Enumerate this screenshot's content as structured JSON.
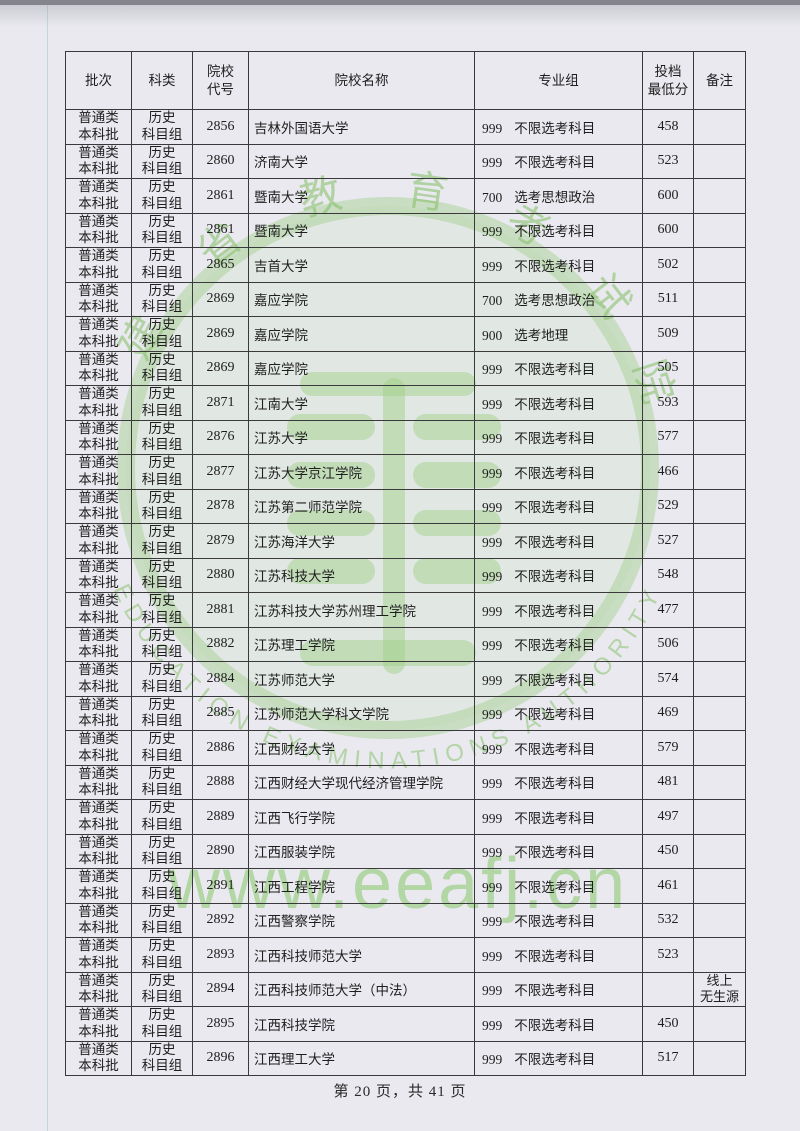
{
  "table": {
    "columns": [
      {
        "key": "batch",
        "label": "批次"
      },
      {
        "key": "category",
        "label": "科类"
      },
      {
        "key": "code",
        "label": "院校\n代号"
      },
      {
        "key": "name",
        "label": "院校名称"
      },
      {
        "key": "group",
        "label": "专业组"
      },
      {
        "key": "score",
        "label": "投档\n最低分"
      },
      {
        "key": "remark",
        "label": "备注"
      }
    ],
    "rows": [
      {
        "batch": "普通类\n本科批",
        "category": "历史\n科目组",
        "code": "2856",
        "name": "吉林外国语大学",
        "group_code": "999",
        "group_name": "不限选考科目",
        "score": "458",
        "remark": ""
      },
      {
        "batch": "普通类\n本科批",
        "category": "历史\n科目组",
        "code": "2860",
        "name": "济南大学",
        "group_code": "999",
        "group_name": "不限选考科目",
        "score": "523",
        "remark": ""
      },
      {
        "batch": "普通类\n本科批",
        "category": "历史\n科目组",
        "code": "2861",
        "name": "暨南大学",
        "group_code": "700",
        "group_name": "选考思想政治",
        "score": "600",
        "remark": ""
      },
      {
        "batch": "普通类\n本科批",
        "category": "历史\n科目组",
        "code": "2861",
        "name": "暨南大学",
        "group_code": "999",
        "group_name": "不限选考科目",
        "score": "600",
        "remark": ""
      },
      {
        "batch": "普通类\n本科批",
        "category": "历史\n科目组",
        "code": "2865",
        "name": "吉首大学",
        "group_code": "999",
        "group_name": "不限选考科目",
        "score": "502",
        "remark": ""
      },
      {
        "batch": "普通类\n本科批",
        "category": "历史\n科目组",
        "code": "2869",
        "name": "嘉应学院",
        "group_code": "700",
        "group_name": "选考思想政治",
        "score": "511",
        "remark": ""
      },
      {
        "batch": "普通类\n本科批",
        "category": "历史\n科目组",
        "code": "2869",
        "name": "嘉应学院",
        "group_code": "900",
        "group_name": "选考地理",
        "score": "509",
        "remark": ""
      },
      {
        "batch": "普通类\n本科批",
        "category": "历史\n科目组",
        "code": "2869",
        "name": "嘉应学院",
        "group_code": "999",
        "group_name": "不限选考科目",
        "score": "505",
        "remark": ""
      },
      {
        "batch": "普通类\n本科批",
        "category": "历史\n科目组",
        "code": "2871",
        "name": "江南大学",
        "group_code": "999",
        "group_name": "不限选考科目",
        "score": "593",
        "remark": ""
      },
      {
        "batch": "普通类\n本科批",
        "category": "历史\n科目组",
        "code": "2876",
        "name": "江苏大学",
        "group_code": "999",
        "group_name": "不限选考科目",
        "score": "577",
        "remark": ""
      },
      {
        "batch": "普通类\n本科批",
        "category": "历史\n科目组",
        "code": "2877",
        "name": "江苏大学京江学院",
        "group_code": "999",
        "group_name": "不限选考科目",
        "score": "466",
        "remark": ""
      },
      {
        "batch": "普通类\n本科批",
        "category": "历史\n科目组",
        "code": "2878",
        "name": "江苏第二师范学院",
        "group_code": "999",
        "group_name": "不限选考科目",
        "score": "529",
        "remark": ""
      },
      {
        "batch": "普通类\n本科批",
        "category": "历史\n科目组",
        "code": "2879",
        "name": "江苏海洋大学",
        "group_code": "999",
        "group_name": "不限选考科目",
        "score": "527",
        "remark": ""
      },
      {
        "batch": "普通类\n本科批",
        "category": "历史\n科目组",
        "code": "2880",
        "name": "江苏科技大学",
        "group_code": "999",
        "group_name": "不限选考科目",
        "score": "548",
        "remark": ""
      },
      {
        "batch": "普通类\n本科批",
        "category": "历史\n科目组",
        "code": "2881",
        "name": "江苏科技大学苏州理工学院",
        "group_code": "999",
        "group_name": "不限选考科目",
        "score": "477",
        "remark": ""
      },
      {
        "batch": "普通类\n本科批",
        "category": "历史\n科目组",
        "code": "2882",
        "name": "江苏理工学院",
        "group_code": "999",
        "group_name": "不限选考科目",
        "score": "506",
        "remark": ""
      },
      {
        "batch": "普通类\n本科批",
        "category": "历史\n科目组",
        "code": "2884",
        "name": "江苏师范大学",
        "group_code": "999",
        "group_name": "不限选考科目",
        "score": "574",
        "remark": ""
      },
      {
        "batch": "普通类\n本科批",
        "category": "历史\n科目组",
        "code": "2885",
        "name": "江苏师范大学科文学院",
        "group_code": "999",
        "group_name": "不限选考科目",
        "score": "469",
        "remark": ""
      },
      {
        "batch": "普通类\n本科批",
        "category": "历史\n科目组",
        "code": "2886",
        "name": "江西财经大学",
        "group_code": "999",
        "group_name": "不限选考科目",
        "score": "579",
        "remark": ""
      },
      {
        "batch": "普通类\n本科批",
        "category": "历史\n科目组",
        "code": "2888",
        "name": "江西财经大学现代经济管理学院",
        "group_code": "999",
        "group_name": "不限选考科目",
        "score": "481",
        "remark": ""
      },
      {
        "batch": "普通类\n本科批",
        "category": "历史\n科目组",
        "code": "2889",
        "name": "江西飞行学院",
        "group_code": "999",
        "group_name": "不限选考科目",
        "score": "497",
        "remark": ""
      },
      {
        "batch": "普通类\n本科批",
        "category": "历史\n科目组",
        "code": "2890",
        "name": "江西服装学院",
        "group_code": "999",
        "group_name": "不限选考科目",
        "score": "450",
        "remark": ""
      },
      {
        "batch": "普通类\n本科批",
        "category": "历史\n科目组",
        "code": "2891",
        "name": "江西工程学院",
        "group_code": "999",
        "group_name": "不限选考科目",
        "score": "461",
        "remark": ""
      },
      {
        "batch": "普通类\n本科批",
        "category": "历史\n科目组",
        "code": "2892",
        "name": "江西警察学院",
        "group_code": "999",
        "group_name": "不限选考科目",
        "score": "532",
        "remark": ""
      },
      {
        "batch": "普通类\n本科批",
        "category": "历史\n科目组",
        "code": "2893",
        "name": "江西科技师范大学",
        "group_code": "999",
        "group_name": "不限选考科目",
        "score": "523",
        "remark": ""
      },
      {
        "batch": "普通类\n本科批",
        "category": "历史\n科目组",
        "code": "2894",
        "name": "江西科技师范大学（中法）",
        "group_code": "999",
        "group_name": "不限选考科目",
        "score": "",
        "remark": "线上\n无生源"
      },
      {
        "batch": "普通类\n本科批",
        "category": "历史\n科目组",
        "code": "2895",
        "name": "江西科技学院",
        "group_code": "999",
        "group_name": "不限选考科目",
        "score": "450",
        "remark": ""
      },
      {
        "batch": "普通类\n本科批",
        "category": "历史\n科目组",
        "code": "2896",
        "name": "江西理工大学",
        "group_code": "999",
        "group_name": "不限选考科目",
        "score": "517",
        "remark": ""
      }
    ]
  },
  "watermark": {
    "ring_characters": [
      "建",
      "省",
      "教",
      "育",
      "考",
      "试",
      "院"
    ],
    "arc_text": "EDUCATION EXAMINATIONS AUTHORITY",
    "url": "www.eeafj.cn",
    "green": "#9cc97f"
  },
  "footer": {
    "page_text": "第 20 页，共 41 页"
  }
}
